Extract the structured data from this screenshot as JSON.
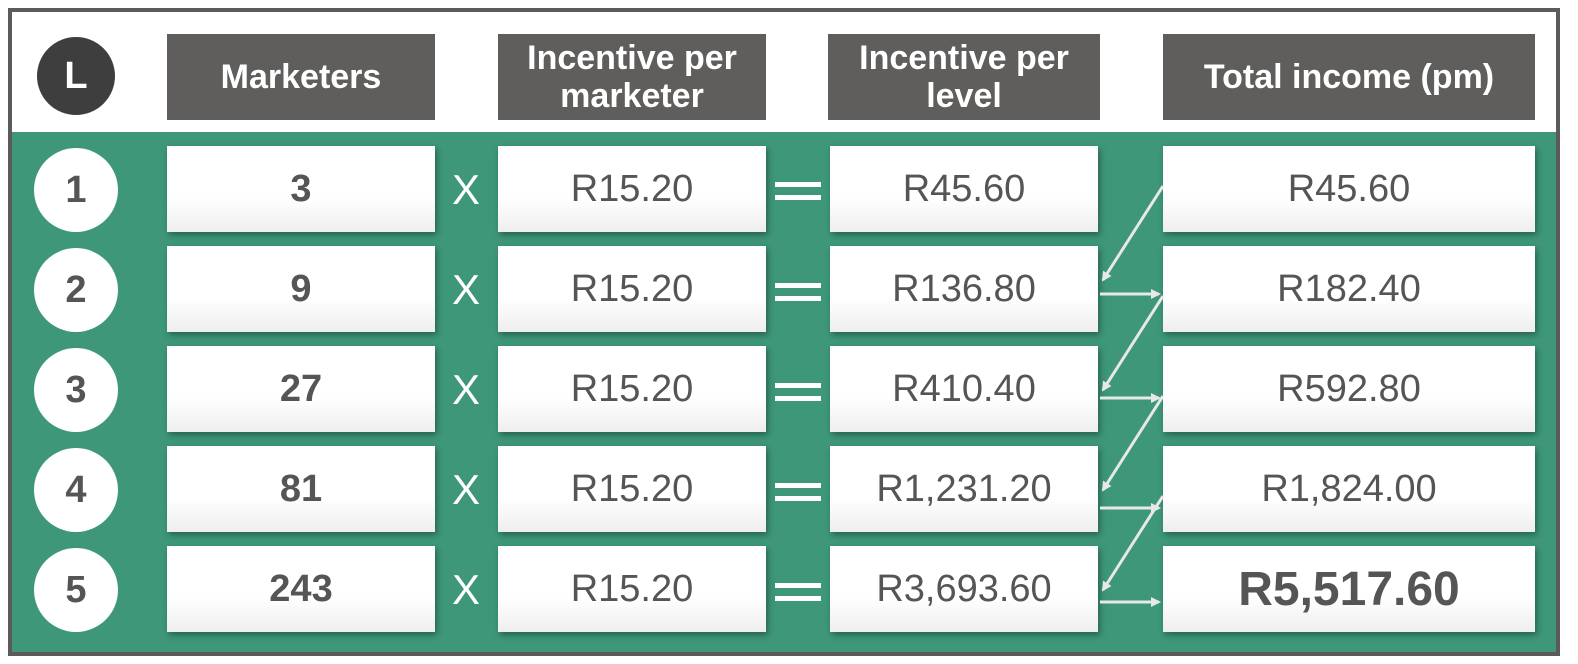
{
  "header": {
    "level_symbol": "L",
    "marketers": "Marketers",
    "incentive_per_marketer": "Incentive per marketer",
    "incentive_per_level": "Incentive per level",
    "total_income": "Total income (pm)"
  },
  "operators": {
    "multiply": "X"
  },
  "rows": [
    {
      "level": "1",
      "marketers": "3",
      "rate": "R15.20",
      "level_incentive": "R45.60",
      "total": "R45.60"
    },
    {
      "level": "2",
      "marketers": "9",
      "rate": "R15.20",
      "level_incentive": "R136.80",
      "total": "R182.40"
    },
    {
      "level": "3",
      "marketers": "27",
      "rate": "R15.20",
      "level_incentive": "R410.40",
      "total": "R592.80"
    },
    {
      "level": "4",
      "marketers": "81",
      "rate": "R15.20",
      "level_incentive": "R1,231.20",
      "total": "R1,824.00"
    },
    {
      "level": "5",
      "marketers": "243",
      "rate": "R15.20",
      "level_incentive": "R3,693.60",
      "total": "R5,517.60"
    }
  ],
  "colors": {
    "background": "#3d9778",
    "header": "#5f5e5c",
    "frame": "#5b5b5b"
  }
}
